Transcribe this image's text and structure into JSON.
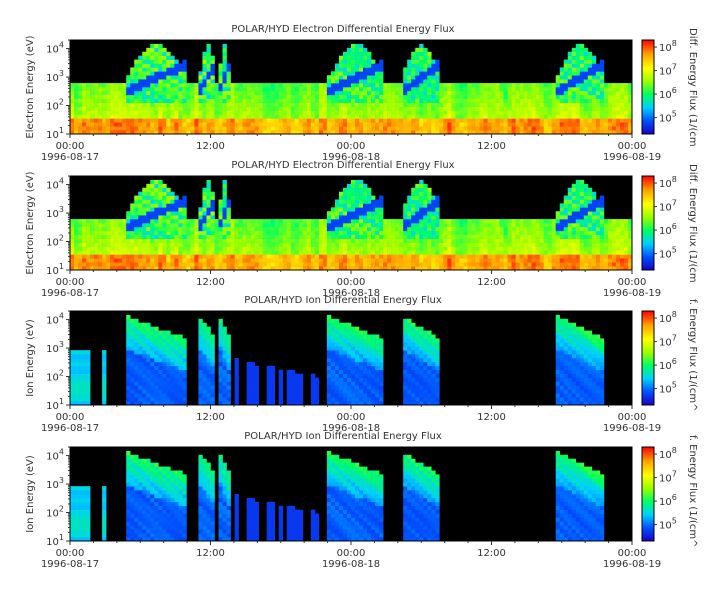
{
  "colors": {
    "background": "#ffffff",
    "text": "#333333",
    "plot_background": "#000000",
    "colormap": [
      "#1a00c8",
      "#0050ff",
      "#00d0ff",
      "#00ff60",
      "#9aff00",
      "#ffff00",
      "#ffa000",
      "#ff0000"
    ]
  },
  "chart_data": [
    {
      "type": "heatmap",
      "title": "POLAR/HYD  Electron Differential Energy Flux",
      "ylabel": "Electron Energy (eV)",
      "yscale": "log",
      "ylim": [
        10,
        20000
      ],
      "y_ticks": [
        {
          "value": 10,
          "base": "10",
          "exp": "1"
        },
        {
          "value": 100,
          "base": "10",
          "exp": "2"
        },
        {
          "value": 1000,
          "base": "10",
          "exp": "3"
        },
        {
          "value": 10000,
          "base": "10",
          "exp": "4"
        }
      ],
      "xlim": [
        "1996-08-17 00:00",
        "1996-08-19 00:00"
      ],
      "x_ticks": [
        {
          "value": "1996-08-17 00:00",
          "time": "00:00",
          "date": "1996-08-17"
        },
        {
          "value": "1996-08-17 12:00",
          "time": "12:00",
          "date": ""
        },
        {
          "value": "1996-08-18 00:00",
          "time": "00:00",
          "date": "1996-08-18"
        },
        {
          "value": "1996-08-18 12:00",
          "time": "12:00",
          "date": ""
        },
        {
          "value": "1996-08-19 00:00",
          "time": "00:00",
          "date": "1996-08-19"
        }
      ],
      "colorbar": {
        "label": "Diff. Energy Flux (1/(cm",
        "scale": "log",
        "range": [
          20000,
          200000000
        ],
        "ticks": [
          {
            "value": 100000,
            "base": "10",
            "exp": "5"
          },
          {
            "value": 1000000,
            "base": "10",
            "exp": "6"
          },
          {
            "value": 10000000,
            "base": "10",
            "exp": "7"
          },
          {
            "value": 100000000,
            "base": "10",
            "exp": "8"
          }
        ]
      }
    },
    {
      "type": "heatmap",
      "title": "POLAR/HYD  Electron Differential Energy Flux",
      "ylabel": "Electron Energy (eV)",
      "yscale": "log",
      "ylim": [
        10,
        20000
      ],
      "y_ticks": [
        {
          "value": 10,
          "base": "10",
          "exp": "1"
        },
        {
          "value": 100,
          "base": "10",
          "exp": "2"
        },
        {
          "value": 1000,
          "base": "10",
          "exp": "3"
        },
        {
          "value": 10000,
          "base": "10",
          "exp": "4"
        }
      ],
      "xlim": [
        "1996-08-17 00:00",
        "1996-08-19 00:00"
      ],
      "x_ticks": [
        {
          "value": "1996-08-17 00:00",
          "time": "00:00",
          "date": "1996-08-17"
        },
        {
          "value": "1996-08-17 12:00",
          "time": "12:00",
          "date": ""
        },
        {
          "value": "1996-08-18 00:00",
          "time": "00:00",
          "date": "1996-08-18"
        },
        {
          "value": "1996-08-18 12:00",
          "time": "12:00",
          "date": ""
        },
        {
          "value": "1996-08-19 00:00",
          "time": "00:00",
          "date": "1996-08-19"
        }
      ],
      "colorbar": {
        "label": "Diff. Energy Flux (1/(cm",
        "scale": "log",
        "range": [
          20000,
          200000000
        ],
        "ticks": [
          {
            "value": 100000,
            "base": "10",
            "exp": "5"
          },
          {
            "value": 1000000,
            "base": "10",
            "exp": "6"
          },
          {
            "value": 10000000,
            "base": "10",
            "exp": "7"
          },
          {
            "value": 100000000,
            "base": "10",
            "exp": "8"
          }
        ]
      }
    },
    {
      "type": "heatmap",
      "title": "POLAR/HYD  Ion Differential Energy Flux",
      "ylabel": "Ion Energy (eV)",
      "yscale": "log",
      "ylim": [
        10,
        20000
      ],
      "y_ticks": [
        {
          "value": 10,
          "base": "10",
          "exp": "1"
        },
        {
          "value": 100,
          "base": "10",
          "exp": "2"
        },
        {
          "value": 1000,
          "base": "10",
          "exp": "3"
        },
        {
          "value": 10000,
          "base": "10",
          "exp": "4"
        }
      ],
      "xlim": [
        "1996-08-17 00:00",
        "1996-08-19 00:00"
      ],
      "x_ticks": [
        {
          "value": "1996-08-17 00:00",
          "time": "00:00",
          "date": "1996-08-17"
        },
        {
          "value": "1996-08-17 12:00",
          "time": "12:00",
          "date": ""
        },
        {
          "value": "1996-08-18 00:00",
          "time": "00:00",
          "date": "1996-08-18"
        },
        {
          "value": "1996-08-18 12:00",
          "time": "12:00",
          "date": ""
        },
        {
          "value": "1996-08-19 00:00",
          "time": "00:00",
          "date": "1996-08-19"
        }
      ],
      "colorbar": {
        "label": "f. Energy Flux (1/(cm^",
        "scale": "log",
        "range": [
          20000,
          200000000
        ],
        "ticks": [
          {
            "value": 100000,
            "base": "10",
            "exp": "5"
          },
          {
            "value": 1000000,
            "base": "10",
            "exp": "6"
          },
          {
            "value": 10000000,
            "base": "10",
            "exp": "7"
          },
          {
            "value": 100000000,
            "base": "10",
            "exp": "8"
          }
        ]
      }
    },
    {
      "type": "heatmap",
      "title": "POLAR/HYD  Ion Differential Energy Flux",
      "ylabel": "Ion Energy (eV)",
      "yscale": "log",
      "ylim": [
        10,
        20000
      ],
      "y_ticks": [
        {
          "value": 10,
          "base": "10",
          "exp": "1"
        },
        {
          "value": 100,
          "base": "10",
          "exp": "2"
        },
        {
          "value": 1000,
          "base": "10",
          "exp": "3"
        },
        {
          "value": 10000,
          "base": "10",
          "exp": "4"
        }
      ],
      "xlim": [
        "1996-08-17 00:00",
        "1996-08-19 00:00"
      ],
      "x_ticks": [
        {
          "value": "1996-08-17 00:00",
          "time": "00:00",
          "date": "1996-08-17"
        },
        {
          "value": "1996-08-17 12:00",
          "time": "12:00",
          "date": ""
        },
        {
          "value": "1996-08-18 00:00",
          "time": "00:00",
          "date": "1996-08-18"
        },
        {
          "value": "1996-08-18 12:00",
          "time": "12:00",
          "date": ""
        },
        {
          "value": "1996-08-19 00:00",
          "time": "00:00",
          "date": "1996-08-19"
        }
      ],
      "colorbar": {
        "label": "f. Energy Flux (1/(cm^",
        "scale": "log",
        "range": [
          20000,
          200000000
        ],
        "ticks": [
          {
            "value": 100000,
            "base": "10",
            "exp": "5"
          },
          {
            "value": 1000000,
            "base": "10",
            "exp": "6"
          },
          {
            "value": 10000000,
            "base": "10",
            "exp": "7"
          },
          {
            "value": 100000000,
            "base": "10",
            "exp": "8"
          }
        ]
      }
    }
  ]
}
